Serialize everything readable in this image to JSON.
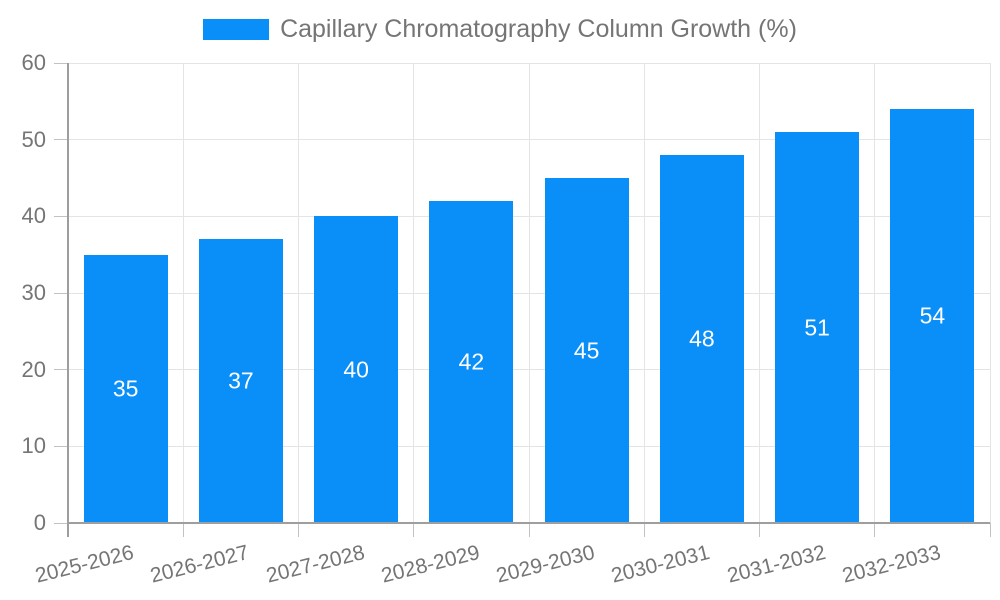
{
  "colors": {
    "bar": "#0a8ef8",
    "text": "#757575",
    "gridline": "#e4e4e4",
    "axis": "#9e9e9e",
    "tick": "#c2c2c2",
    "value_label": "#ffffff",
    "background": "#ffffff"
  },
  "legend": {
    "label": "Capillary Chromatography Column Growth (%)"
  },
  "chart_data": {
    "type": "bar",
    "title": "Capillary Chromatography Column Growth (%)",
    "categories": [
      "2025-2026",
      "2026-2027",
      "2027-2028",
      "2028-2029",
      "2029-2030",
      "2030-2031",
      "2031-2032",
      "2032-2033"
    ],
    "values": [
      35,
      37,
      40,
      42,
      45,
      48,
      51,
      54
    ],
    "xlabel": "",
    "ylabel": "",
    "ylim": [
      0,
      60
    ],
    "yticks": [
      0,
      10,
      20,
      30,
      40,
      50,
      60
    ],
    "grid": true,
    "legend_position": "top",
    "value_labels_inside_bars": true,
    "x_label_rotation_deg": -14
  }
}
